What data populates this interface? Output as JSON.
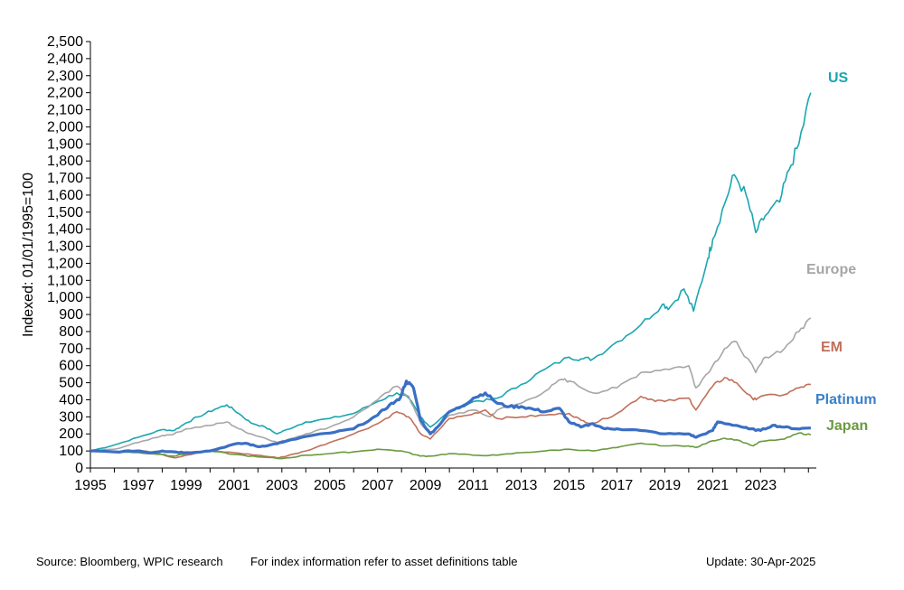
{
  "chart_data": {
    "type": "line",
    "ylabel": "Indexed: 01/01/1995=100",
    "ylim": [
      0,
      2500
    ],
    "xlim": [
      1995,
      2025.33
    ],
    "y_ticks": [
      "0",
      "100",
      "200",
      "300",
      "400",
      "500",
      "600",
      "700",
      "800",
      "900",
      "1,000",
      "1,100",
      "1,200",
      "1,300",
      "1,400",
      "1,500",
      "1,600",
      "1,700",
      "1,800",
      "1,900",
      "2,000",
      "2,100",
      "2,200",
      "2,300",
      "2,400",
      "2,500"
    ],
    "x_ticks": [
      "1995",
      "1997",
      "1999",
      "2001",
      "2003",
      "2005",
      "2007",
      "2009",
      "2011",
      "2013",
      "2015",
      "2017",
      "2019",
      "2021",
      "2023"
    ],
    "grid": false,
    "legend": "labels at series ends",
    "series": [
      {
        "name": "US",
        "color": "#1aa6b0",
        "width": 1.6,
        "x": [
          1995,
          1996,
          1997,
          1998,
          1998.5,
          1999,
          1999.5,
          2000.2,
          2000.7,
          2001.2,
          2001.7,
          2002.3,
          2002.8,
          2003.2,
          2004,
          2005,
          2006,
          2007,
          2007.8,
          2008.3,
          2008.8,
          2009.2,
          2010,
          2011,
          2011.7,
          2012,
          2013,
          2014,
          2015,
          2015.5,
          2016,
          2017,
          2018,
          2018.9,
          2019.2,
          2019.8,
          2020.2,
          2020.8,
          2021,
          2021.5,
          2021.9,
          2022.4,
          2022.8,
          2023.2,
          2023.8,
          2024.2,
          2024.6,
          2025.1
        ],
        "y": [
          100,
          135,
          180,
          225,
          220,
          265,
          300,
          345,
          370,
          320,
          265,
          240,
          200,
          225,
          270,
          290,
          320,
          390,
          440,
          410,
          300,
          240,
          330,
          390,
          400,
          410,
          490,
          580,
          650,
          640,
          640,
          740,
          840,
          960,
          940,
          1050,
          920,
          1230,
          1340,
          1550,
          1720,
          1600,
          1380,
          1480,
          1560,
          1750,
          1900,
          2200
        ]
      },
      {
        "name": "Europe",
        "color": "#a6a6a6",
        "width": 1.6,
        "x": [
          1995,
          1996,
          1997,
          1998,
          1998.5,
          1999,
          2000,
          2000.7,
          2001.2,
          2001.7,
          2002.3,
          2002.8,
          2003.2,
          2004,
          2005,
          2006,
          2007,
          2007.8,
          2008.3,
          2008.8,
          2009.2,
          2010,
          2011,
          2011.7,
          2012,
          2013,
          2014,
          2014.7,
          2015,
          2016,
          2017,
          2018,
          2019,
          2020,
          2020.3,
          2021,
          2021.5,
          2022,
          2022.8,
          2023.2,
          2024,
          2024.6,
          2025.1
        ],
        "y": [
          100,
          110,
          150,
          190,
          200,
          230,
          250,
          270,
          230,
          200,
          175,
          150,
          165,
          200,
          240,
          300,
          400,
          480,
          420,
          260,
          200,
          310,
          340,
          300,
          340,
          380,
          450,
          520,
          510,
          440,
          470,
          560,
          580,
          600,
          470,
          600,
          700,
          740,
          560,
          650,
          700,
          800,
          880
        ]
      },
      {
        "name": "EM",
        "color": "#c0705a",
        "width": 1.6,
        "x": [
          1995,
          1996,
          1997,
          1998,
          1998.5,
          1999,
          2000,
          2001,
          2002,
          2002.8,
          2003.2,
          2004,
          2005,
          2006,
          2007,
          2007.8,
          2008.3,
          2008.8,
          2009.2,
          2010,
          2010.8,
          2011.5,
          2012,
          2013,
          2014,
          2015,
          2015.5,
          2016,
          2017,
          2018,
          2018.5,
          2019,
          2020,
          2020.3,
          2021,
          2021.5,
          2022,
          2022.7,
          2023,
          2024,
          2024.6,
          2025.1
        ],
        "y": [
          100,
          95,
          105,
          80,
          60,
          75,
          100,
          90,
          75,
          60,
          70,
          100,
          150,
          200,
          260,
          330,
          300,
          200,
          170,
          290,
          310,
          340,
          290,
          300,
          310,
          320,
          280,
          260,
          320,
          420,
          400,
          390,
          410,
          340,
          480,
          530,
          500,
          400,
          420,
          430,
          470,
          490
        ]
      },
      {
        "name": "Platinum",
        "color": "#3a6fc4",
        "width": 3.2,
        "x": [
          1995,
          1996,
          1997,
          1997.5,
          1998,
          1998.5,
          1999,
          2000,
          2001,
          2001.5,
          2002,
          2002.5,
          2003,
          2004,
          2005,
          2006,
          2007,
          2007.5,
          2007.9,
          2008.2,
          2008.5,
          2008.8,
          2009.2,
          2009.5,
          2010,
          2010.5,
          2011,
          2011.5,
          2012,
          2012.5,
          2013,
          2013.5,
          2014,
          2014.6,
          2015,
          2015.5,
          2016,
          2016.5,
          2017,
          2018,
          2019,
          2020,
          2020.3,
          2021,
          2021.2,
          2022,
          2022.5,
          2023,
          2023.5,
          2024,
          2024.5,
          2025.1
        ],
        "y": [
          100,
          95,
          100,
          90,
          100,
          95,
          90,
          100,
          140,
          145,
          125,
          135,
          150,
          185,
          205,
          230,
          310,
          370,
          400,
          510,
          470,
          280,
          200,
          240,
          330,
          360,
          410,
          440,
          380,
          360,
          360,
          345,
          330,
          350,
          270,
          240,
          260,
          230,
          230,
          220,
          200,
          200,
          180,
          220,
          270,
          250,
          230,
          220,
          250,
          240,
          230,
          235
        ]
      },
      {
        "name": "Japan",
        "color": "#6a9a40",
        "width": 1.6,
        "x": [
          1995,
          1996,
          1997,
          1998,
          1998.5,
          1999,
          2000,
          2001,
          2002,
          2003,
          2004,
          2005,
          2006,
          2007,
          2008,
          2008.8,
          2009.2,
          2010,
          2011,
          2012,
          2013,
          2014,
          2015,
          2016,
          2017,
          2018,
          2019,
          2020,
          2020.3,
          2021,
          2021.5,
          2022,
          2022.7,
          2023,
          2024,
          2024.6,
          2025.1
        ],
        "y": [
          100,
          95,
          90,
          80,
          70,
          85,
          100,
          80,
          65,
          55,
          75,
          85,
          95,
          110,
          100,
          70,
          70,
          85,
          75,
          75,
          90,
          100,
          110,
          100,
          120,
          145,
          130,
          130,
          120,
          160,
          175,
          165,
          130,
          155,
          170,
          205,
          195
        ]
      }
    ]
  },
  "series_labels": {
    "US": "US",
    "Europe": "Europe",
    "EM": "EM",
    "Platinum": "Platinum",
    "Japan": "Japan"
  },
  "footer": {
    "source": "Source: Bloomberg, WPIC research",
    "note": "For index information refer to asset definitions table",
    "update": "Update: 30-Apr-2025"
  }
}
